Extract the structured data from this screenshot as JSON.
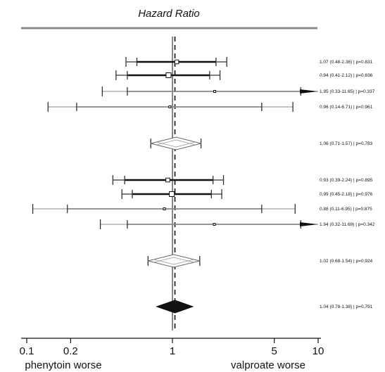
{
  "chart_data": {
    "type": "forest",
    "title": "Hazard Ratio",
    "x_scale": "log",
    "xlim": [
      0.1,
      10
    ],
    "ticks": [
      {
        "value": 0.1,
        "label": "0.1"
      },
      {
        "value": 0.2,
        "label": "0.2"
      },
      {
        "value": 1,
        "label": "1"
      },
      {
        "value": 5,
        "label": "5"
      },
      {
        "value": 10,
        "label": "10"
      }
    ],
    "xlabel_left": "phenytoin worse",
    "xlabel_right": "valproate worse",
    "reference_line": 1,
    "overall_line": 1.04,
    "rows": [
      {
        "kind": "study",
        "est": 1.07,
        "lo": 0.48,
        "hi": 2.36,
        "lo2": 0.57,
        "hi2": 1.99,
        "box": "medium",
        "label": "1.07 (0.48-2.36) | p=0.831"
      },
      {
        "kind": "study",
        "est": 0.94,
        "lo": 0.41,
        "hi": 2.12,
        "lo2": 0.49,
        "hi2": 1.8,
        "box": "large",
        "label": "0.94 (0.41-2.12) | p=0.836"
      },
      {
        "kind": "study",
        "est": 1.95,
        "lo": 0.33,
        "hi": 11.65,
        "lo2": 0.49,
        "hi2": 7.6,
        "box": "tiny",
        "label": "1.95 (0.33-11.65) | p=0.337"
      },
      {
        "kind": "study",
        "est": 0.96,
        "lo": 0.14,
        "hi": 6.71,
        "lo2": 0.22,
        "hi2": 4.1,
        "box": "tiny",
        "label": "0.96 (0.14-6.71) | p=0.961"
      },
      {
        "kind": "subtotal",
        "est": 1.06,
        "lo": 0.71,
        "hi": 1.57,
        "outline": "hollow",
        "label": "1.06 (0.71-1.57) | p=0.783"
      },
      {
        "kind": "study",
        "est": 0.93,
        "lo": 0.39,
        "hi": 2.24,
        "lo2": 0.47,
        "hi2": 1.9,
        "box": "medium",
        "label": "0.93 (0.39-2.24) | p=0.895"
      },
      {
        "kind": "study",
        "est": 0.99,
        "lo": 0.45,
        "hi": 2.18,
        "lo2": 0.53,
        "hi2": 1.85,
        "box": "large",
        "label": "0.99 (0.45-2.18) | p=0.976"
      },
      {
        "kind": "study",
        "est": 0.88,
        "lo": 0.11,
        "hi": 6.95,
        "lo2": 0.19,
        "hi2": 4.1,
        "box": "tiny",
        "label": "0.88 (0.11-6.95) | p=0.875"
      },
      {
        "kind": "study",
        "est": 1.94,
        "lo": 0.32,
        "hi": 11.69,
        "lo2": 0.49,
        "hi2": 7.6,
        "box": "tiny",
        "label": "1.94 (0.32-11.69) | p=0.342"
      },
      {
        "kind": "subtotal",
        "est": 1.02,
        "lo": 0.68,
        "hi": 1.54,
        "outline": "hollow",
        "label": "1.02 (0.68-1.54) | p=0.924"
      },
      {
        "kind": "overall",
        "est": 1.04,
        "lo": 0.78,
        "hi": 1.38,
        "outline": "filled",
        "label": "1.04 (0.78-1.38) | p=0.791"
      }
    ],
    "colors": {
      "ink": "#111111",
      "dark_line": "#333333",
      "light_line": "#888888"
    }
  }
}
